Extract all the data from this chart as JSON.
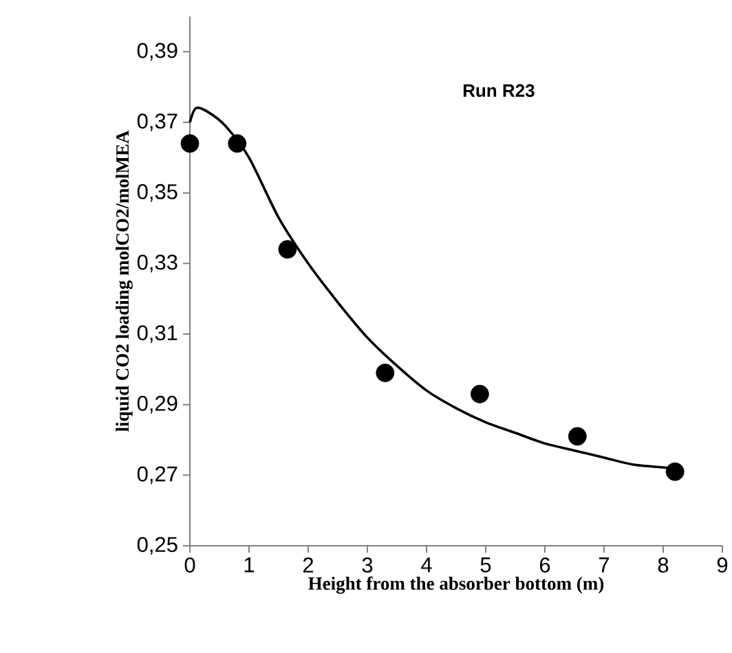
{
  "chart_data": {
    "type": "scatter",
    "xlabel": "Height from the absorber bottom (m)",
    "ylabel": "liquid CO2 loading molCO2/molMEA",
    "annotations": [
      "Run R23"
    ],
    "marker": "circle",
    "xlim": [
      0,
      9
    ],
    "xticks": [
      0,
      1,
      2,
      3,
      4,
      5,
      6,
      7,
      8,
      9
    ],
    "ylim": [
      0.25,
      0.4
    ],
    "yticks": [
      {
        "value": 0.25,
        "label": "0,25"
      },
      {
        "value": 0.27,
        "label": "0,27"
      },
      {
        "value": 0.29,
        "label": "0,29"
      },
      {
        "value": 0.31,
        "label": "0,31"
      },
      {
        "value": 0.33,
        "label": "0,33"
      },
      {
        "value": 0.35,
        "label": "0,35"
      },
      {
        "value": 0.37,
        "label": "0,37"
      },
      {
        "value": 0.39,
        "label": "0,39"
      }
    ],
    "series": [
      {
        "color": "#000000",
        "x": [
          0,
          0.8,
          1.65,
          3.3,
          4.9,
          6.55,
          8.2
        ],
        "values": [
          0.364,
          0.364,
          0.334,
          0.299,
          0.293,
          0.281,
          0.271
        ]
      },
      {
        "type": "line",
        "color": "#000000",
        "marker": "none",
        "x": [
          0,
          0.1,
          0.3,
          0.6,
          1,
          1.5,
          2,
          2.5,
          3,
          3.5,
          4,
          4.5,
          5,
          5.5,
          6,
          6.5,
          7,
          7.5,
          8.2
        ],
        "values": [
          0.37,
          0.374,
          0.373,
          0.369,
          0.36,
          0.343,
          0.33,
          0.319,
          0.309,
          0.301,
          0.294,
          0.289,
          0.285,
          0.282,
          0.279,
          0.277,
          0.275,
          0.273,
          0.272
        ]
      }
    ]
  }
}
